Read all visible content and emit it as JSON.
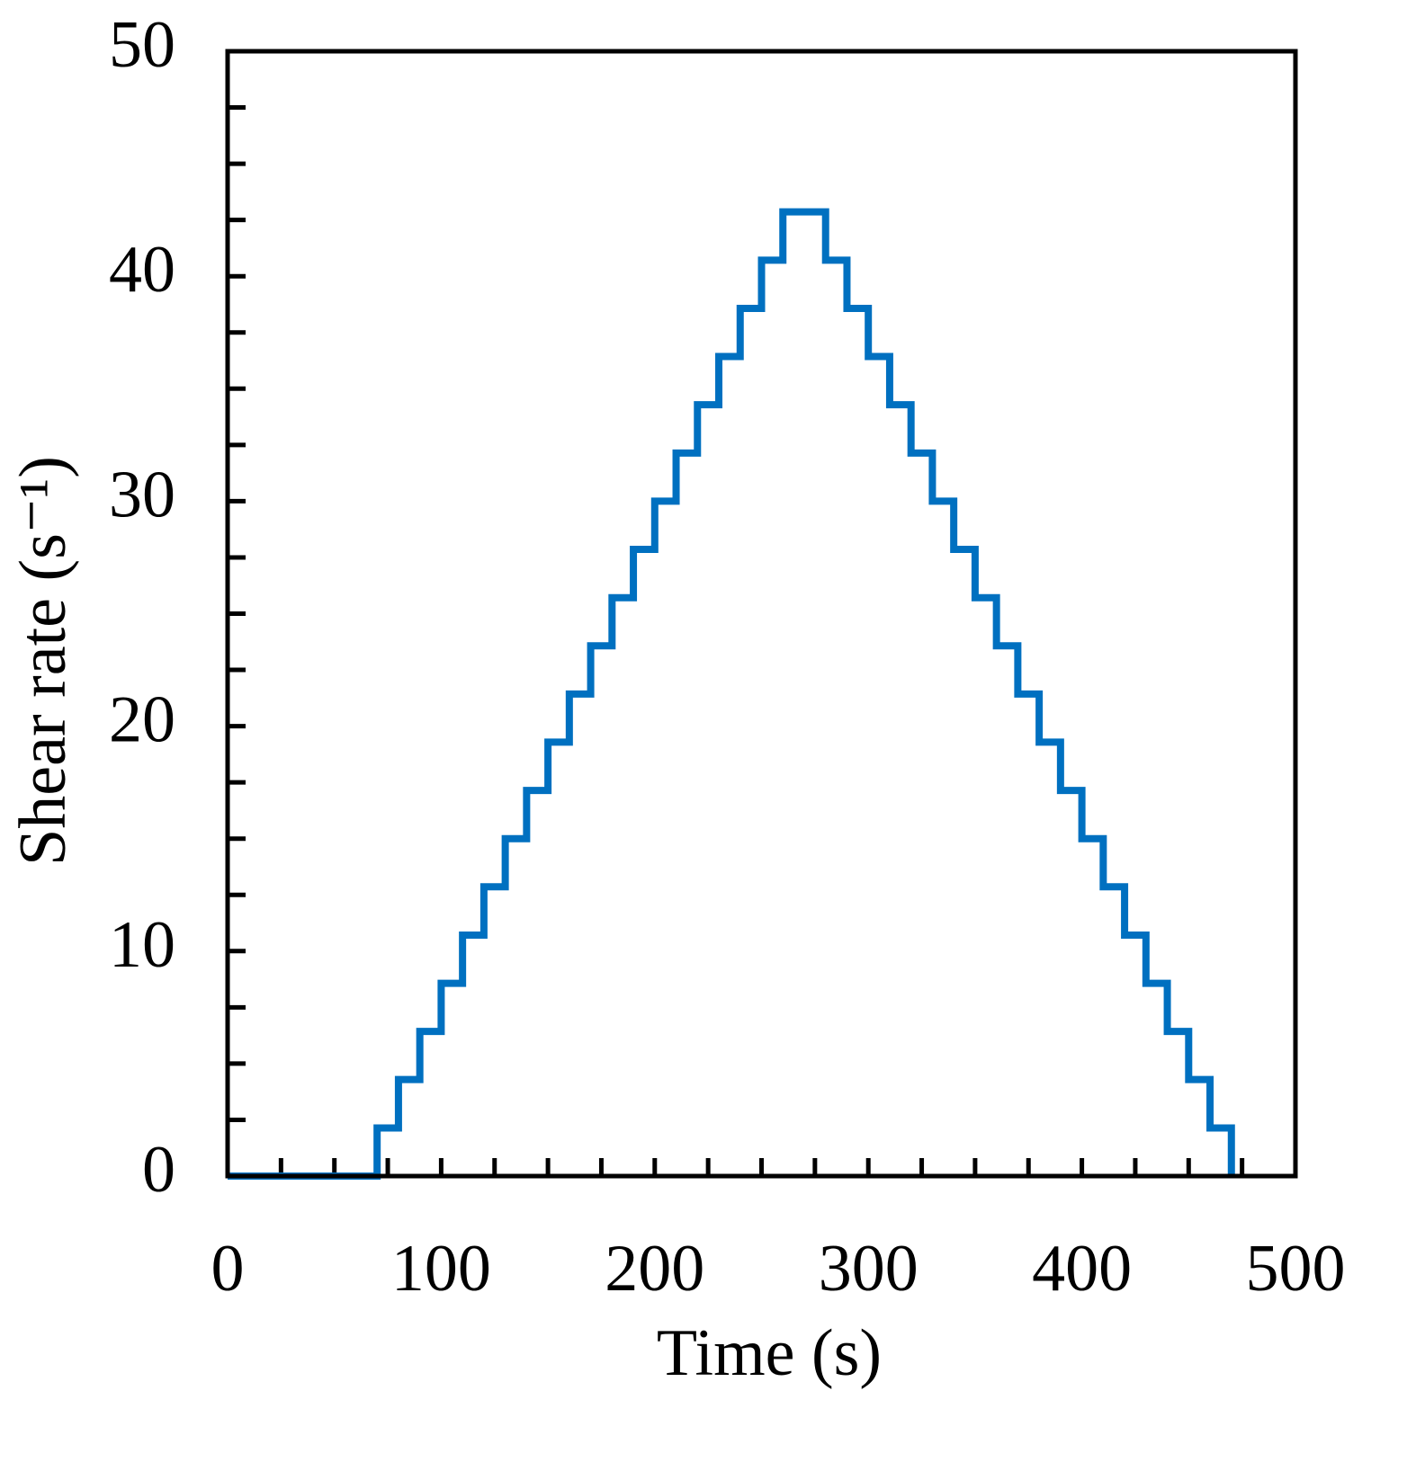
{
  "chart_data": {
    "type": "step",
    "x_label": "Time (s)",
    "y_label": "Shear rate (s⁻¹)",
    "xlim": [
      0,
      500
    ],
    "ylim": [
      0,
      50
    ],
    "xticks": [
      0,
      100,
      200,
      300,
      400,
      500
    ],
    "yticks": [
      0,
      10,
      20,
      30,
      40,
      50
    ],
    "xminorticks": [
      0,
      25,
      50,
      75,
      100,
      125,
      150,
      175,
      200,
      225,
      250,
      275,
      300,
      325,
      350,
      375,
      400,
      425,
      450,
      475,
      500
    ],
    "yminorticks": [
      0,
      2.5,
      5,
      7.5,
      10,
      12.5,
      15,
      17.5,
      20,
      22.5,
      25,
      27.5,
      30,
      32.5,
      35,
      37.5,
      40,
      42.5,
      45,
      47.5,
      50
    ],
    "grid": false,
    "color": "#0070c0",
    "x": [
      0,
      70,
      80,
      90,
      100,
      110,
      120,
      130,
      140,
      150,
      160,
      170,
      180,
      190,
      200,
      210,
      220,
      230,
      240,
      250,
      260,
      280,
      290,
      300,
      310,
      320,
      330,
      340,
      350,
      360,
      370,
      380,
      390,
      400,
      410,
      420,
      430,
      440,
      450,
      460,
      470
    ],
    "values": [
      0,
      2.14,
      4.29,
      6.43,
      8.57,
      10.71,
      12.86,
      15,
      17.14,
      19.29,
      21.43,
      23.57,
      25.71,
      27.86,
      30,
      32.14,
      34.29,
      36.43,
      38.57,
      40.71,
      42.86,
      40.71,
      38.57,
      36.43,
      34.29,
      32.14,
      30,
      27.86,
      25.71,
      23.57,
      21.43,
      19.29,
      17.14,
      15,
      12.86,
      10.71,
      8.57,
      6.43,
      4.29,
      2.14,
      0
    ]
  }
}
